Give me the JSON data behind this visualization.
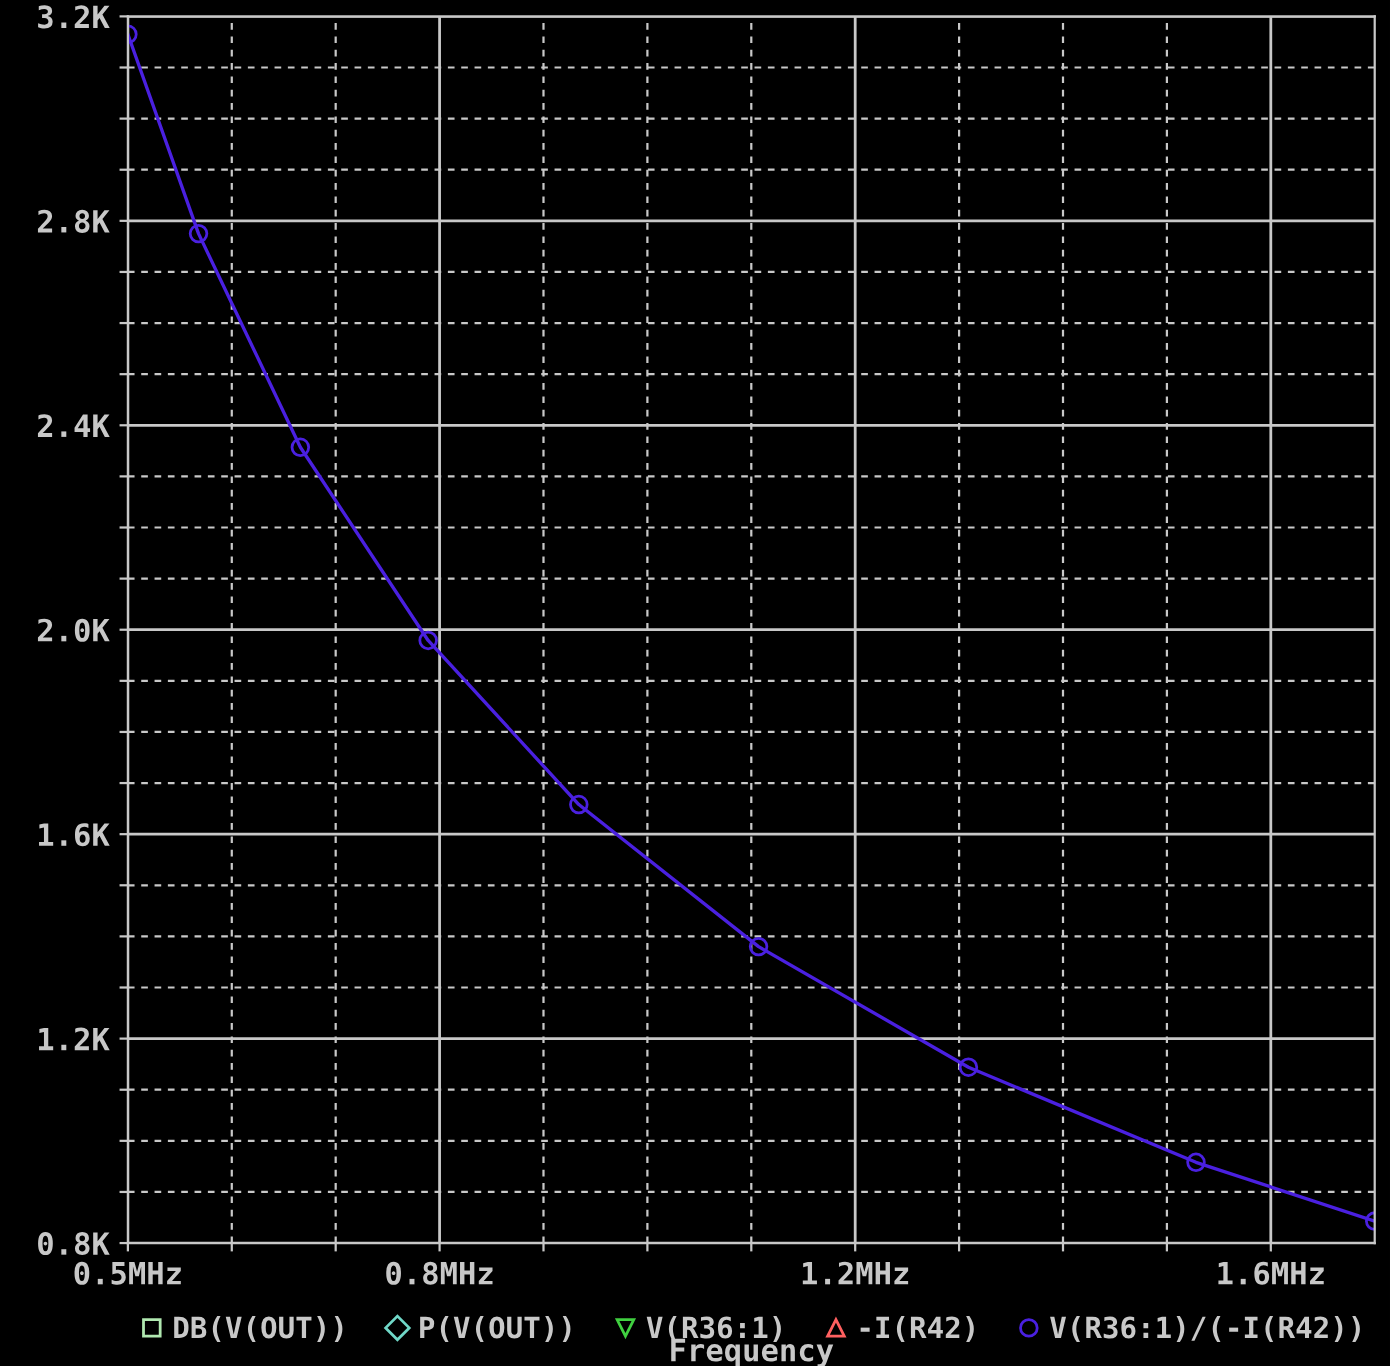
{
  "chart_data": {
    "type": "line",
    "xlabel": "Frequency",
    "xlim": [
      0.5,
      1.7
    ],
    "ylim": [
      0.8,
      3.2
    ],
    "xticks": [
      {
        "value": 0.5,
        "label": "0.5MHz"
      },
      {
        "value": 0.6,
        "label": null
      },
      {
        "value": 0.7,
        "label": null
      },
      {
        "value": 0.8,
        "label": "0.8MHz"
      },
      {
        "value": 0.9,
        "label": null
      },
      {
        "value": 1.0,
        "label": null
      },
      {
        "value": 1.1,
        "label": null
      },
      {
        "value": 1.2,
        "label": "1.2MHz"
      },
      {
        "value": 1.3,
        "label": null
      },
      {
        "value": 1.4,
        "label": null
      },
      {
        "value": 1.5,
        "label": null
      },
      {
        "value": 1.6,
        "label": "1.6MHz"
      }
    ],
    "yticks": [
      {
        "value": 0.8,
        "label": "0.8K"
      },
      {
        "value": 0.9,
        "label": null
      },
      {
        "value": 1.0,
        "label": null
      },
      {
        "value": 1.1,
        "label": null
      },
      {
        "value": 1.2,
        "label": "1.2K"
      },
      {
        "value": 1.3,
        "label": null
      },
      {
        "value": 1.4,
        "label": null
      },
      {
        "value": 1.5,
        "label": null
      },
      {
        "value": 1.6,
        "label": "1.6K"
      },
      {
        "value": 1.7,
        "label": null
      },
      {
        "value": 1.8,
        "label": null
      },
      {
        "value": 1.9,
        "label": null
      },
      {
        "value": 2.0,
        "label": "2.0K"
      },
      {
        "value": 2.1,
        "label": null
      },
      {
        "value": 2.2,
        "label": null
      },
      {
        "value": 2.3,
        "label": null
      },
      {
        "value": 2.4,
        "label": "2.4K"
      },
      {
        "value": 2.5,
        "label": null
      },
      {
        "value": 2.6,
        "label": null
      },
      {
        "value": 2.7,
        "label": null
      },
      {
        "value": 2.8,
        "label": "2.8K"
      },
      {
        "value": 2.9,
        "label": null
      },
      {
        "value": 3.0,
        "label": null
      },
      {
        "value": 3.1,
        "label": null
      },
      {
        "value": 3.2,
        "label": "3.2K"
      }
    ],
    "grid": true,
    "legend": "bottom",
    "line_style": "solid",
    "series": [
      {
        "name": "DB(V(OUT))",
        "color": "#b0e8b0",
        "marker": "square"
      },
      {
        "name": "P(V(OUT))",
        "color": "#70d8c8",
        "marker": "diamond"
      },
      {
        "name": "V(R36:1)",
        "color": "#40d040",
        "marker": "triangle_down"
      },
      {
        "name": "-I(R42)",
        "color": "#ff6060",
        "marker": "triangle"
      },
      {
        "name": "V(R36:1)/(-I(R42))",
        "color": "#4a20e0",
        "marker": "circle",
        "x": [
          0.5,
          0.568,
          0.666,
          0.789,
          0.934,
          1.107,
          1.309,
          1.528,
          1.7
        ],
        "values": [
          3.165,
          2.775,
          2.357,
          1.979,
          1.658,
          1.38,
          1.144,
          0.958,
          0.843
        ]
      }
    ]
  }
}
